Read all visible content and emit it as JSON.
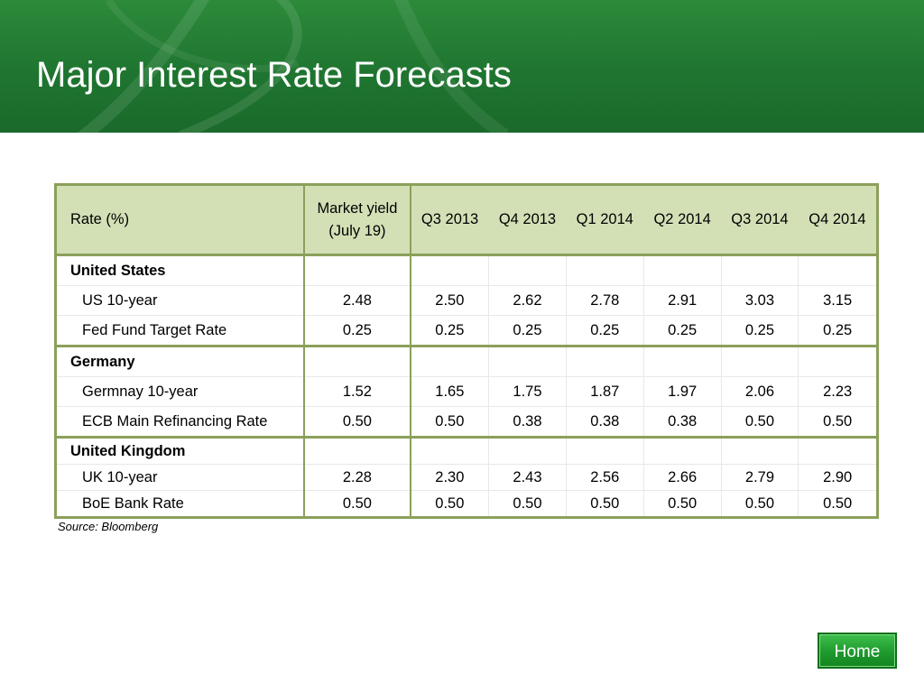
{
  "title": "Major Interest Rate Forecasts",
  "table": {
    "header": {
      "rate": "Rate (%)",
      "market_line1": "Market yield",
      "market_line2": "(July 19)",
      "quarters": [
        "Q3 2013",
        "Q4 2013",
        "Q1 2014",
        "Q2 2014",
        "Q3 2014",
        "Q4 2014"
      ]
    },
    "groups": [
      {
        "name": "United States",
        "rows": [
          {
            "label": "US 10-year",
            "market": "2.48",
            "values": [
              "2.50",
              "2.62",
              "2.78",
              "2.91",
              "3.03",
              "3.15"
            ]
          },
          {
            "label": "Fed Fund Target Rate",
            "market": "0.25",
            "values": [
              "0.25",
              "0.25",
              "0.25",
              "0.25",
              "0.25",
              "0.25"
            ]
          }
        ]
      },
      {
        "name": "Germany",
        "rows": [
          {
            "label": "Germnay 10-year",
            "market": "1.52",
            "values": [
              "1.65",
              "1.75",
              "1.87",
              "1.97",
              "2.06",
              "2.23"
            ]
          },
          {
            "label": "ECB Main Refinancing Rate",
            "market": "0.50",
            "values": [
              "0.50",
              "0.38",
              "0.38",
              "0.38",
              "0.50",
              "0.50"
            ]
          }
        ]
      },
      {
        "name": "United Kingdom",
        "rows": [
          {
            "label": "UK 10-year",
            "market": "2.28",
            "values": [
              "2.30",
              "2.43",
              "2.56",
              "2.66",
              "2.79",
              "2.90"
            ]
          },
          {
            "label": "BoE Bank Rate",
            "market": "0.50",
            "values": [
              "0.50",
              "0.50",
              "0.50",
              "0.50",
              "0.50",
              "0.50"
            ]
          }
        ]
      }
    ]
  },
  "source": "Source: Bloomberg",
  "home_button": "Home",
  "colors": {
    "header_green": "#1f7530",
    "table_header_fill": "#d3e0b6",
    "table_border": "#8ba05a",
    "button_green": "#1f9a2f"
  }
}
